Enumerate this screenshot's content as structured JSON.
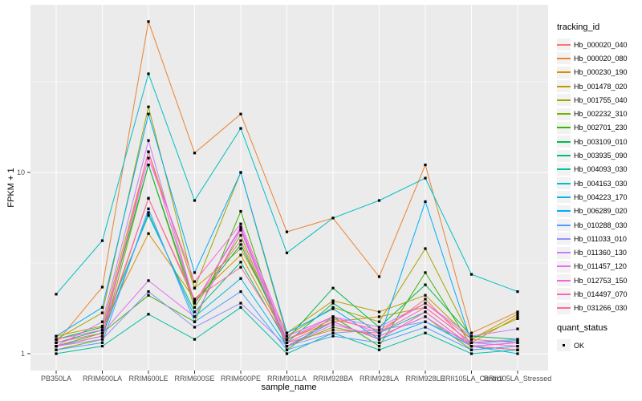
{
  "chart_data": {
    "type": "line",
    "title": "",
    "xlabel": "sample_name",
    "ylabel": "FPKM + 1",
    "categories": [
      "PB350LA",
      "RRIM600LA",
      "RRIM600LE",
      "RRIM600SE",
      "RRIM600PE",
      "RRIM901LA",
      "RRIM928BA",
      "RRIM928LA",
      "RRIM928LE",
      "RRII105LA_Control",
      "RRII105LA_Stressed"
    ],
    "y_axis": {
      "scale": "log10",
      "ylim": [
        0.81,
        84.0
      ],
      "major_breaks": [
        1,
        10
      ],
      "minor_breaks": [
        3.162,
        31.623
      ],
      "tick_labels": [
        "1",
        "10"
      ]
    },
    "grid": true,
    "legend_position": "right",
    "legend": {
      "title": "tracking_id"
    },
    "quant_legend": {
      "title": "quant_status",
      "label": "OK",
      "marker": "black-square"
    },
    "colors": {
      "panel_bg": "#EBEBEB",
      "grid": "#FFFFFF",
      "axis_text": "#4D4D4D",
      "tick_mark": "#333333",
      "marker": "#000000"
    },
    "series": [
      {
        "name": "Hb_000020_040",
        "color": "#F8766D",
        "values": [
          1.1,
          1.25,
          7.2,
          1.95,
          4.2,
          1.15,
          1.35,
          1.3,
          2.0,
          1.1,
          1.05
        ]
      },
      {
        "name": "Hb_000020_080",
        "color": "#EA8331",
        "values": [
          1.15,
          2.33,
          68.0,
          12.8,
          21.0,
          4.7,
          5.6,
          2.66,
          11.0,
          1.3,
          1.7
        ]
      },
      {
        "name": "Hb_000230_190",
        "color": "#D89000",
        "values": [
          1.2,
          1.4,
          4.6,
          2.0,
          3.5,
          1.2,
          1.5,
          1.6,
          1.8,
          1.15,
          1.6
        ]
      },
      {
        "name": "Hb_001478_020",
        "color": "#C09B00",
        "values": [
          1.25,
          1.42,
          13.0,
          2.3,
          3.8,
          1.3,
          1.96,
          1.7,
          2.1,
          1.2,
          1.65
        ]
      },
      {
        "name": "Hb_001755_040",
        "color": "#A3A500",
        "values": [
          1.2,
          1.68,
          23.0,
          2.3,
          10.0,
          1.25,
          1.8,
          1.5,
          3.8,
          1.2,
          1.56
        ]
      },
      {
        "name": "Hb_002232_310",
        "color": "#7CAE00",
        "values": [
          1.05,
          1.2,
          11.0,
          1.8,
          4.5,
          1.1,
          1.4,
          1.25,
          1.6,
          1.05,
          1.1
        ]
      },
      {
        "name": "Hb_002701_230",
        "color": "#39B600",
        "values": [
          1.1,
          1.3,
          2.1,
          1.5,
          6.1,
          1.05,
          1.6,
          1.1,
          2.8,
          1.1,
          1.05
        ]
      },
      {
        "name": "Hb_003109_010",
        "color": "#00BB4E",
        "values": [
          1.15,
          1.35,
          11.0,
          1.9,
          4.0,
          1.2,
          2.3,
          1.4,
          2.4,
          1.25,
          1.2
        ]
      },
      {
        "name": "Hb_003935_090",
        "color": "#00BF7D",
        "values": [
          1.2,
          1.4,
          5.8,
          1.7,
          3.2,
          1.15,
          1.9,
          1.3,
          1.7,
          1.1,
          1.15
        ]
      },
      {
        "name": "Hb_004093_030",
        "color": "#00C1A3",
        "values": [
          1.0,
          1.1,
          1.65,
          1.2,
          1.8,
          1.0,
          1.3,
          1.05,
          1.3,
          1.0,
          1.05
        ]
      },
      {
        "name": "Hb_004163_030",
        "color": "#00BFC4",
        "values": [
          2.13,
          4.2,
          35.0,
          7.0,
          17.5,
          3.6,
          5.6,
          7.0,
          9.3,
          2.74,
          2.2
        ]
      },
      {
        "name": "Hb_004223_170",
        "color": "#00B8E7",
        "values": [
          1.1,
          1.25,
          6.0,
          1.6,
          2.6,
          1.1,
          1.5,
          1.2,
          1.5,
          1.1,
          1.0
        ]
      },
      {
        "name": "Hb_006289_020",
        "color": "#00ACFC",
        "values": [
          1.25,
          1.8,
          21.0,
          2.8,
          10.0,
          1.3,
          1.77,
          1.2,
          6.9,
          1.15,
          1.18
        ]
      },
      {
        "name": "Hb_010288_030",
        "color": "#529EFF",
        "values": [
          1.05,
          1.15,
          6.3,
          1.5,
          2.2,
          1.05,
          1.25,
          1.15,
          1.4,
          1.05,
          1.1
        ]
      },
      {
        "name": "Hb_011033_010",
        "color": "#9590FF",
        "values": [
          1.1,
          1.2,
          2.2,
          1.4,
          1.9,
          1.1,
          1.3,
          1.35,
          1.5,
          1.15,
          1.2
        ]
      },
      {
        "name": "Hb_011360_130",
        "color": "#C77CFF",
        "values": [
          1.1,
          1.5,
          15.0,
          1.9,
          5.0,
          1.2,
          1.6,
          1.4,
          1.9,
          1.25,
          1.37
        ]
      },
      {
        "name": "Hb_011457_120",
        "color": "#E76BF3",
        "values": [
          1.15,
          1.3,
          2.53,
          1.6,
          4.8,
          1.1,
          1.45,
          1.25,
          1.6,
          1.1,
          1.15
        ]
      },
      {
        "name": "Hb_012753_150",
        "color": "#FA62DB",
        "values": [
          1.2,
          1.35,
          12.0,
          2.5,
          5.2,
          1.25,
          1.6,
          1.3,
          1.8,
          1.15,
          1.1
        ]
      },
      {
        "name": "Hb_014497_070",
        "color": "#FF62BC",
        "values": [
          1.1,
          1.25,
          13.0,
          1.9,
          4.9,
          1.15,
          1.5,
          1.2,
          1.7,
          1.1,
          1.05
        ]
      },
      {
        "name": "Hb_031266_030",
        "color": "#FF6A98",
        "values": [
          1.15,
          1.3,
          7.2,
          2.0,
          3.0,
          1.2,
          1.55,
          1.35,
          1.9,
          1.2,
          1.15
        ]
      }
    ]
  }
}
